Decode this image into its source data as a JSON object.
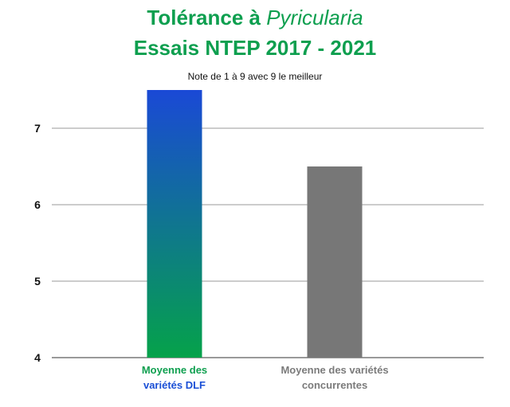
{
  "title_part1": "Tolérance à",
  "title_italic": "Pyricularia",
  "title_line2": "Essais NTEP 2017 - 2021",
  "subtitle": "Note de 1 à 9 avec 9 le meilleur",
  "chart_data": {
    "type": "bar",
    "ylim": [
      4,
      7.5
    ],
    "yticks": [
      4,
      5,
      6,
      7
    ],
    "grid": true,
    "categories": [
      {
        "lines": [
          "Moyenne des",
          "variétés DLF"
        ],
        "label_colors": [
          "#0e9f4f",
          "#1a4fd6"
        ],
        "value": 7.5,
        "color_top": "#1a49d6",
        "color_bottom": "#05a24a"
      },
      {
        "lines": [
          "Moyenne des variétés",
          "concurrentes"
        ],
        "label_colors": [
          "#7b7b7b",
          "#7b7b7b"
        ],
        "value": 6.5,
        "color_top": "#777777",
        "color_bottom": "#777777"
      }
    ]
  }
}
